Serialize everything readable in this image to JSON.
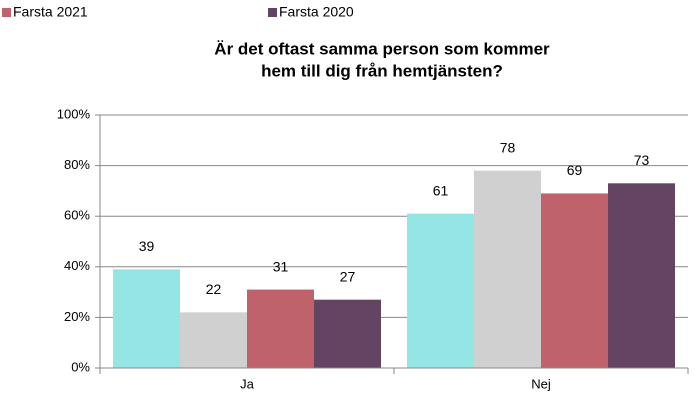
{
  "chart_data": {
    "type": "bar",
    "title": [
      "Är det oftast samma person som kommer",
      "hem till dig från hemtjänsten?"
    ],
    "categories": [
      "Ja",
      "Nej"
    ],
    "series": [
      {
        "name": null,
        "color": "#93e6e3",
        "values": [
          39,
          61
        ]
      },
      {
        "name": null,
        "color": "#d0d0d0",
        "values": [
          22,
          78
        ]
      },
      {
        "name": "Farsta 2021",
        "color": "#c0626b",
        "values": [
          31,
          69
        ]
      },
      {
        "name": "Farsta 2020",
        "color": "#634563",
        "values": [
          27,
          73
        ]
      }
    ],
    "ylim": [
      0,
      100
    ],
    "yticks": [
      {
        "value": 0,
        "label": "0%"
      },
      {
        "value": 20,
        "label": "20%"
      },
      {
        "value": 40,
        "label": "40%"
      },
      {
        "value": 60,
        "label": "60%"
      },
      {
        "value": 80,
        "label": "80%"
      },
      {
        "value": 100,
        "label": "100%"
      }
    ],
    "grid": true,
    "legend": "top"
  }
}
